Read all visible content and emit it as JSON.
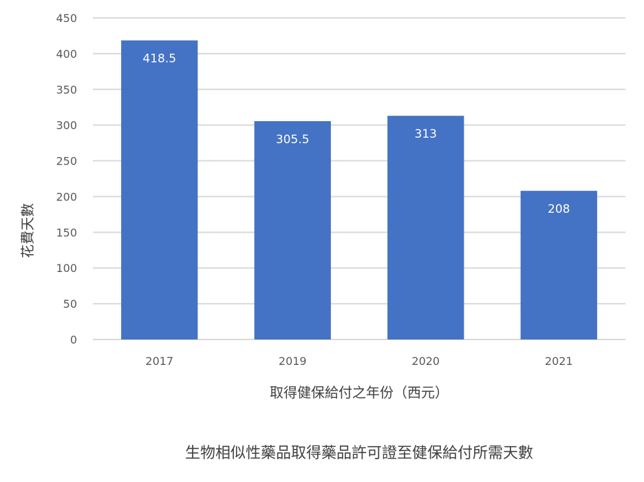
{
  "chart_data": {
    "type": "bar",
    "title": "生物相似性藥品取得藥品許可證至健保給付所需天數",
    "xlabel": "取得健保給付之年份（西元）",
    "ylabel": "花費天數",
    "categories": [
      "2017",
      "2019",
      "2020",
      "2021"
    ],
    "values": [
      418.5,
      305.5,
      313,
      208
    ],
    "data_labels": [
      "418.5",
      "305.5",
      "313",
      "208"
    ],
    "ylim": [
      0,
      450
    ],
    "yticks": [
      0,
      50,
      100,
      150,
      200,
      250,
      300,
      350,
      400,
      450
    ],
    "grid": true,
    "legend": "none",
    "bar_color": "#4472C4",
    "grid_color": "#D9D9D9"
  }
}
